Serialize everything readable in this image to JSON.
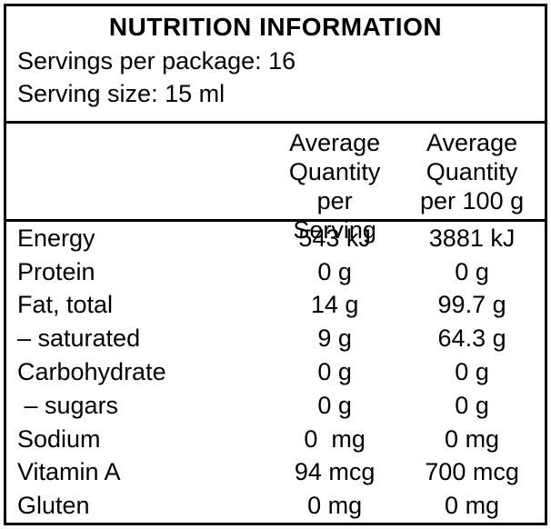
{
  "label": {
    "title": "NUTRITION INFORMATION",
    "servings_per_package": "Servings per package: 16",
    "serving_size": "Serving size: 15 ml"
  },
  "table": {
    "col_headers": {
      "nutrient": "",
      "per_serving": "Average\nQuantity per\nServing",
      "per_100g": "Average\nQuantity\nper 100 g"
    },
    "rows": [
      {
        "label": "Energy",
        "per_serving": "543 kJ",
        "per_100g": "3881 kJ"
      },
      {
        "label": "Protein",
        "per_serving": "0 g",
        "per_100g": "0 g"
      },
      {
        "label": "Fat, total",
        "per_serving": "14 g",
        "per_100g": "99.7 g"
      },
      {
        "label": "– saturated",
        "per_serving": "9 g",
        "per_100g": "64.3 g"
      },
      {
        "label": "Carbohydrate",
        "per_serving": "0 g",
        "per_100g": "0 g"
      },
      {
        "label": " – sugars",
        "per_serving": "0 g",
        "per_100g": "0 g"
      },
      {
        "label": "Sodium",
        "per_serving": "0  mg",
        "per_100g": "0 mg"
      },
      {
        "label": "Vitamin A",
        "per_serving": "94 mcg",
        "per_100g": "700 mcg"
      },
      {
        "label": "Gluten",
        "per_serving": "0 mg",
        "per_100g": "0 mg"
      }
    ]
  },
  "colors": {
    "background": "#ffffff",
    "text": "#000000",
    "border": "#000000"
  }
}
